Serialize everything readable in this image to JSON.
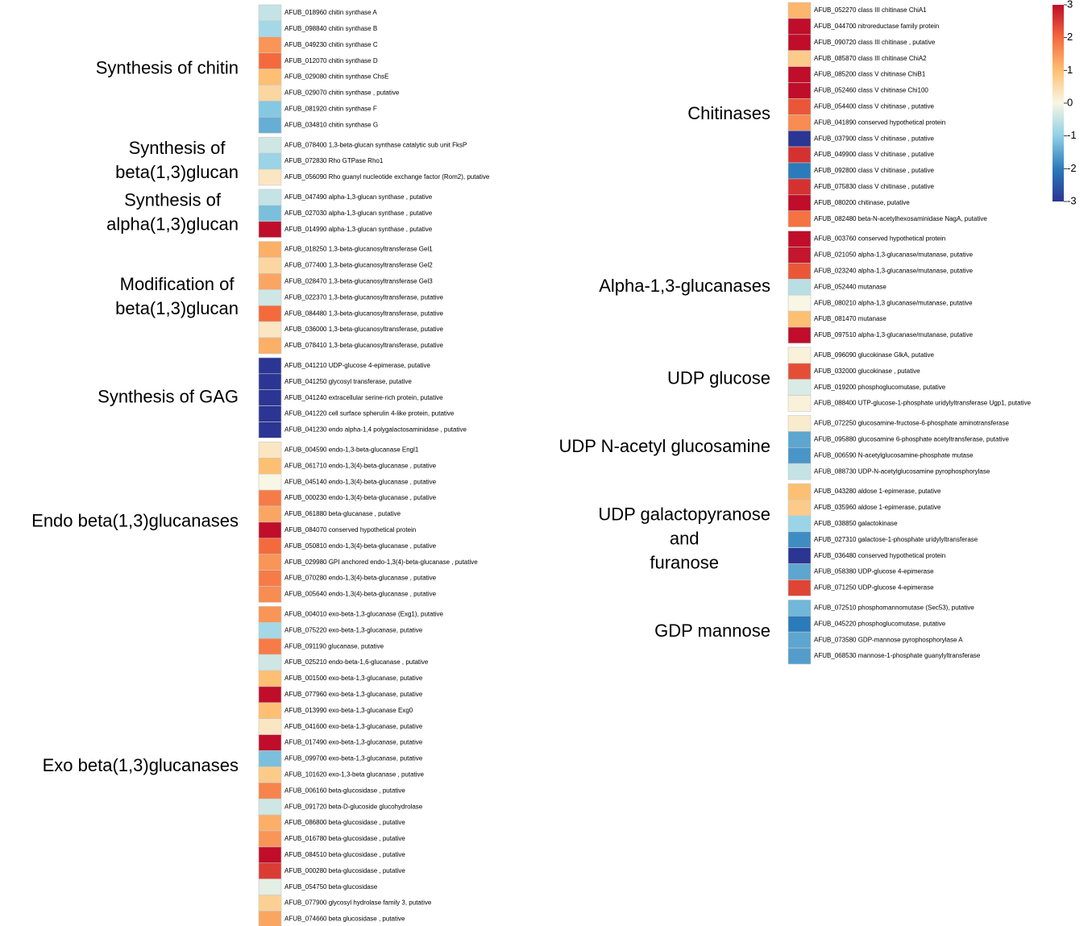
{
  "chart_data": {
    "type": "heatmap",
    "colorbar": {
      "lim": [
        -3,
        3
      ],
      "ticks": [
        3,
        2,
        1,
        0,
        -1,
        -2,
        -3
      ],
      "colors": [
        "#2b3593",
        "#2b7bba",
        "#8fd0e6",
        "#f8f6e4",
        "#fdc072",
        "#f46a3c",
        "#bf0d2a"
      ]
    },
    "columns": [
      {
        "groups": [
          {
            "title": [
              "Synthesis of chitin"
            ],
            "rows": [
              {
                "label": "AFUB_018960 chitin synthase A",
                "value": -0.5
              },
              {
                "label": "AFUB_098840 chitin synthase B",
                "value": -0.8
              },
              {
                "label": "AFUB_049230 chitin synthase C",
                "value": 1.5
              },
              {
                "label": "AFUB_012070 chitin synthase D",
                "value": 2
              },
              {
                "label": "AFUB_029080 chitin synthase ChsE",
                "value": 1
              },
              {
                "label": "AFUB_029070 chitin synthase , putative",
                "value": 0.6
              },
              {
                "label": "AFUB_081920 chitin synthase F",
                "value": -1.1
              },
              {
                "label": "AFUB_034810 chitin synthase G",
                "value": -1.4
              }
            ]
          },
          {
            "title": [
              "Synthesis of",
              "beta(1,3)glucan"
            ],
            "rows": [
              {
                "label": "AFUB_078400 1,3-beta-glucan synthase catalytic sub unit FksP",
                "value": -0.4
              },
              {
                "label": "AFUB_072830 Rho GTPase Rho1",
                "value": -0.9
              },
              {
                "label": "AFUB_056090 Rho guanyl nucleotide exchange factor (Rom2), putative",
                "value": 0.3
              }
            ]
          },
          {
            "title": [
              "Synthesis of",
              "alpha(1,3)glucan"
            ],
            "rows": [
              {
                "label": "AFUB_047490 alpha-1,3-glucan synthase , putative",
                "value": -0.5
              },
              {
                "label": "AFUB_027030 alpha-1,3-glucan synthase , putative",
                "value": -1.2
              },
              {
                "label": "AFUB_014990 alpha-1,3-glucan synthase , putative",
                "value": 3
              }
            ]
          },
          {
            "title": [
              "Modification of",
              "beta(1,3)glucan"
            ],
            "rows": [
              {
                "label": "AFUB_018250 1,3-beta-glucanosyltransferase Gel1",
                "value": 1.2
              },
              {
                "label": "AFUB_077400 1,3-beta-glucanosyltransferase Gel2",
                "value": 0.6
              },
              {
                "label": "AFUB_028470 1,3-beta-glucanosyltransferase Gel3",
                "value": 1.3
              },
              {
                "label": "AFUB_022370 1,3-beta-glucanosyltransferase, putative",
                "value": -0.4
              },
              {
                "label": "AFUB_084480 1,3-beta-glucanosyltransferase, putative",
                "value": 2
              },
              {
                "label": "AFUB_036000 1,3-beta-glucanosyltransferase, putative",
                "value": 0.3
              },
              {
                "label": "AFUB_078410 1,3-beta-glucanosyltransferase, putative",
                "value": 1.2
              }
            ]
          },
          {
            "title": [
              "Synthesis of GAG"
            ],
            "rows": [
              {
                "label": "AFUB_041210 UDP-glucose 4-epimerase, putative",
                "value": -3
              },
              {
                "label": "AFUB_041250 glycosyl transferase, putative",
                "value": -3
              },
              {
                "label": "AFUB_041240 extracellular serine-rich protein, putative",
                "value": -3
              },
              {
                "label": "AFUB_041220 cell surface spherulin 4-like protein, putative",
                "value": -3
              },
              {
                "label": "AFUB_041230 endo alpha-1,4 polygalactosaminidase , putative",
                "value": -3
              }
            ]
          },
          {
            "title": [
              "Endo beta(1,3)glucanases"
            ],
            "rows": [
              {
                "label": "AFUB_004590 endo-1,3-beta-glucanase Engl1",
                "value": 0.3
              },
              {
                "label": "AFUB_061710 endo-1,3(4)-beta-glucanase , putative",
                "value": 1
              },
              {
                "label": "AFUB_045140 endo-1,3(4)-beta-glucanase , putative",
                "value": 0
              },
              {
                "label": "AFUB_000230 endo-1,3(4)-beta-glucanase , putative",
                "value": 1.8
              },
              {
                "label": "AFUB_061880 beta-glucanase , putative",
                "value": 1.3
              },
              {
                "label": "AFUB_084070 conserved hypothetical protein",
                "value": 3
              },
              {
                "label": "AFUB_050810 endo-1,3(4)-beta-glucanase , putative",
                "value": 2
              },
              {
                "label": "AFUB_029980 GPI anchored endo-1,3(4)-beta-glucanase , putative",
                "value": 1.5
              },
              {
                "label": "AFUB_070280 endo-1,3(4)-beta-glucanase , putative",
                "value": 1.8
              },
              {
                "label": "AFUB_005640 endo-1,3(4)-beta-glucanase , putative",
                "value": 1.6
              }
            ]
          },
          {
            "title": [
              "Exo beta(1,3)glucanases"
            ],
            "rows": [
              {
                "label": "AFUB_004010 exo-beta-1,3-glucanase (Exg1), putative",
                "value": 1.5
              },
              {
                "label": "AFUB_075220 exo-beta-1,3-glucanase, putative",
                "value": -0.8
              },
              {
                "label": "AFUB_091190 glucanase, putative",
                "value": 1.8
              },
              {
                "label": "AFUB_025210 endo-beta-1,6-glucanase , putative",
                "value": -0.4
              },
              {
                "label": "AFUB_001500 exo-beta-1,3-glucanase, putative",
                "value": 1
              },
              {
                "label": "AFUB_077960 exo-beta-1,3-glucanase, putative",
                "value": 3
              },
              {
                "label": "AFUB_013990 exo-beta-1,3-glucanase Exg0",
                "value": 1
              },
              {
                "label": "AFUB_041600 exo-beta-1,3-glucanase, putative",
                "value": 0.3
              },
              {
                "label": "AFUB_017490 exo-beta-1,3-glucanase, putative",
                "value": 3
              },
              {
                "label": "AFUB_099700 exo-beta-1,3-glucanase, putative",
                "value": -1.2
              },
              {
                "label": "AFUB_101620 exo-1,3-beta glucanase , putative",
                "value": 0.8
              },
              {
                "label": "AFUB_006160 beta-glucosidase , putative",
                "value": 1.7
              },
              {
                "label": "AFUB_091720 beta-D-glucoside glucohydrolase",
                "value": -0.4
              },
              {
                "label": "AFUB_086800 beta-glucosidase , putative",
                "value": 1.2
              },
              {
                "label": "AFUB_016780 beta-glucosidase , putative",
                "value": 1.5
              },
              {
                "label": "AFUB_084510 beta-glucosidase , putative",
                "value": 3
              },
              {
                "label": "AFUB_000280 beta-glucosidase , putative",
                "value": 2.5
              },
              {
                "label": "AFUB_054750 beta-glucosidase",
                "value": -0.2
              },
              {
                "label": "AFUB_077900 glycosyl hydrolase family 3, putative",
                "value": 0.7
              },
              {
                "label": "AFUB_074660 beta glucosidase , putative",
                "value": 1.3
              }
            ]
          }
        ]
      },
      {
        "groups": [
          {
            "title": [
              "Chitinases"
            ],
            "rows": [
              {
                "label": "AFUB_052270 class III chitinase ChiA1",
                "value": 1.1
              },
              {
                "label": "AFUB_044700 nitroreductase family protein",
                "value": 3
              },
              {
                "label": "AFUB_090720 class III chitinase , putative",
                "value": 3
              },
              {
                "label": "AFUB_085870 class III chitinase ChiA2",
                "value": 0.8
              },
              {
                "label": "AFUB_085200 class V chitinase ChiB1",
                "value": 3
              },
              {
                "label": "AFUB_052460 class V chitinase Chi100",
                "value": 3
              },
              {
                "label": "AFUB_054400 class V chitinase , putative",
                "value": 2.2
              },
              {
                "label": "AFUB_041890 conserved hypothetical protein",
                "value": 1.6
              },
              {
                "label": "AFUB_037900 class V chitinase , putative",
                "value": -3
              },
              {
                "label": "AFUB_049900 class V chitinase , putative",
                "value": 2.6
              },
              {
                "label": "AFUB_092800 class V chitinase , putative",
                "value": -2
              },
              {
                "label": "AFUB_075830 class V chitinase , putative",
                "value": 2.6
              },
              {
                "label": "AFUB_080200 chitinase, putative",
                "value": 3
              },
              {
                "label": "AFUB_082480 beta-N-acetylhexosaminidase NagA, putative",
                "value": 1.9
              }
            ]
          },
          {
            "title": [
              "Alpha-1,3-glucanases"
            ],
            "rows": [
              {
                "label": "AFUB_003760 conserved hypothetical protein",
                "value": 3
              },
              {
                "label": "AFUB_021050 alpha-1,3-glucanase/mutanase, putative",
                "value": 2.9
              },
              {
                "label": "AFUB_023240 alpha-1,3-glucanase/mutanase, putative",
                "value": 2.2
              },
              {
                "label": "AFUB_052440 mutanase",
                "value": -0.6
              },
              {
                "label": "AFUB_080210 alpha-1,3 glucanase/mutanase, putative",
                "value": 0
              },
              {
                "label": "AFUB_081470 mutanase",
                "value": 1
              },
              {
                "label": "AFUB_097510 alpha-1,3-glucanase/mutanase, putative",
                "value": 3
              }
            ]
          },
          {
            "title": [
              "UDP glucose"
            ],
            "rows": [
              {
                "label": "AFUB_096090 glucokinase GlkA, putative",
                "value": 0.1
              },
              {
                "label": "AFUB_032000 glucokinase , putative",
                "value": 2.3
              },
              {
                "label": "AFUB_019200 phosphoglucomutase, putative",
                "value": -0.3
              },
              {
                "label": "AFUB_088400 UTP-glucose-1-phosphate uridylyltransferase Ugp1, putative",
                "value": 0.1
              }
            ]
          },
          {
            "title": [
              "UDP N-acetyl glucosamine"
            ],
            "rows": [
              {
                "label": "AFUB_072250 glucosamine-fructose-6-phosphate aminotransferase",
                "value": 0.2
              },
              {
                "label": "AFUB_095880 glucosamine 6-phosphate acetyltransferase, putative",
                "value": -1.5
              },
              {
                "label": "AFUB_006590 N-acetylglucosamine-phosphate mutase",
                "value": -1.7
              },
              {
                "label": "AFUB_088730 UDP-N-acetylglucosamine pyrophosphorylase",
                "value": -0.5
              }
            ]
          },
          {
            "title": [
              "UDP galactopyranose",
              "and",
              "furanose"
            ],
            "rows": [
              {
                "label": "AFUB_043280 aldose 1-epimerase, putative",
                "value": 1
              },
              {
                "label": "AFUB_035960 aldose 1-epimerase, putative",
                "value": 0.8
              },
              {
                "label": "AFUB_038850 galactokinase",
                "value": -0.9
              },
              {
                "label": "AFUB_027310 galactose-1-phosphate uridylyltransferase",
                "value": -1.8
              },
              {
                "label": "AFUB_036480 conserved hypothetical protein",
                "value": -3
              },
              {
                "label": "AFUB_058380 UDP-glucose 4-epimerase",
                "value": -1.5
              },
              {
                "label": "AFUB_071250 UDP-glucose 4-epimerase",
                "value": 2.4
              }
            ]
          },
          {
            "title": [
              "GDP mannose"
            ],
            "rows": [
              {
                "label": "AFUB_072510 phosphomannomutase (Sec53), putative",
                "value": -1.3
              },
              {
                "label": "AFUB_045220 phosphoglucomutase, putative",
                "value": -2
              },
              {
                "label": "AFUB_073580 GDP-mannose pyrophosphorylase A",
                "value": -1.5
              },
              {
                "label": "AFUB_068530 mannose-1-phosphate guanylyltransferase",
                "value": -1.6
              }
            ]
          }
        ]
      }
    ]
  }
}
